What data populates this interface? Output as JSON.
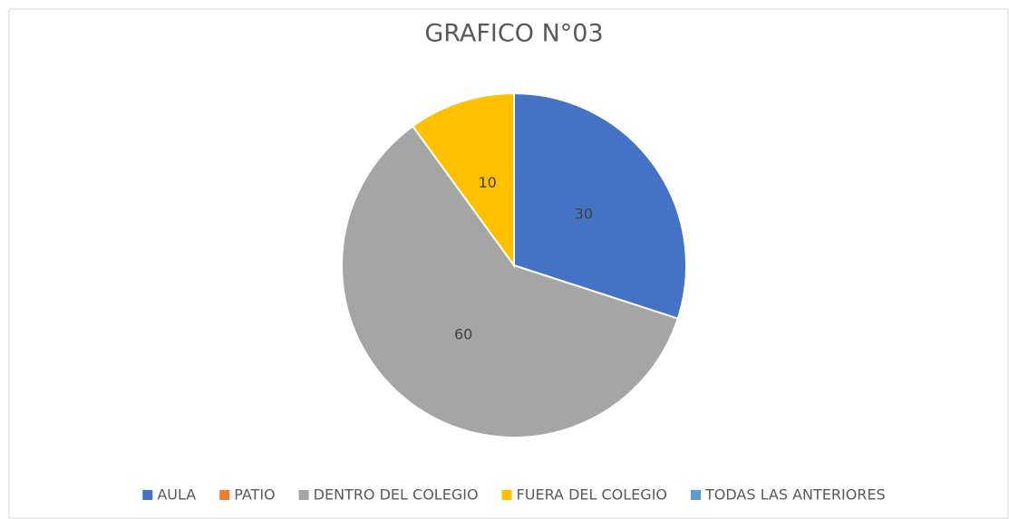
{
  "chart_data": {
    "type": "pie",
    "title": "GRAFICO N°03",
    "categories": [
      "AULA",
      "PATIO",
      "DENTRO DEL COLEGIO",
      "FUERA DEL COLEGIO",
      "TODAS LAS ANTERIORES"
    ],
    "values": [
      30,
      0,
      60,
      10,
      0
    ],
    "colors": [
      "#4472c4",
      "#ed7d31",
      "#a5a5a5",
      "#ffc000",
      "#5b9bd5"
    ],
    "legend": "bottom"
  }
}
